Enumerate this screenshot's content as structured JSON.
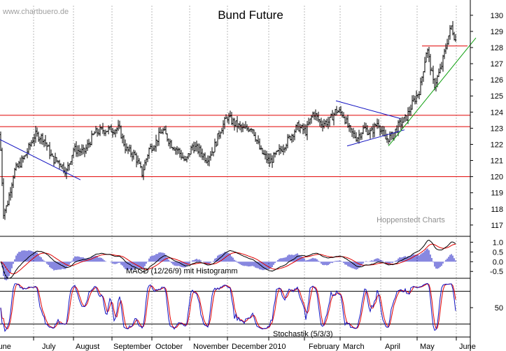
{
  "watermark": "www.chartbuero.de",
  "credit": "Hoppenstedt Charts",
  "chart_data": [
    {
      "type": "bar",
      "subtype": "ohlc",
      "title": "Bund Future",
      "x_labels": [
        "June",
        "July",
        "August",
        "September",
        "October",
        "November",
        "December",
        "2010",
        "February",
        "March",
        "April",
        "May",
        "June"
      ],
      "yticks": [
        "130",
        "129",
        "128",
        "127",
        "126",
        "125",
        "124",
        "123",
        "122",
        "121",
        "120",
        "119",
        "118",
        "117"
      ],
      "ylim": [
        116.3,
        130.6
      ],
      "horizontal_lines": [
        123.8,
        123.1,
        120.0,
        128.1
      ],
      "trend_lines": [
        {
          "color": "#1010c0",
          "from": [
            "June",
            122.3
          ],
          "to": [
            "August",
            119.8
          ]
        },
        {
          "color": "#1010c0",
          "from": [
            "February",
            124.7
          ],
          "to": [
            "April",
            123.6
          ]
        },
        {
          "color": "#1010c0",
          "from": [
            "March",
            121.9
          ],
          "to": [
            "April",
            122.9
          ]
        },
        {
          "color": "#10a010",
          "from": [
            "April",
            121.9
          ],
          "to": [
            "June",
            128.6
          ]
        }
      ],
      "grid": true
    },
    {
      "type": "line",
      "label": "MACD (12/26/9) mit Histogramm",
      "yticks": [
        "1.0",
        "0.5",
        "0.0",
        "-0.5"
      ],
      "ylim": [
        -0.85,
        1.3
      ],
      "series_colors": {
        "macd": "#000000",
        "signal": "#e00000",
        "histogram": "#1010c0"
      }
    },
    {
      "type": "line",
      "label": "Stochastik  (5/3/3)",
      "yticks": [
        "50"
      ],
      "ylim": [
        0,
        100
      ],
      "levels": [
        80,
        20
      ],
      "series_colors": {
        "k": "#1010c0",
        "d": "#e00000"
      }
    }
  ]
}
